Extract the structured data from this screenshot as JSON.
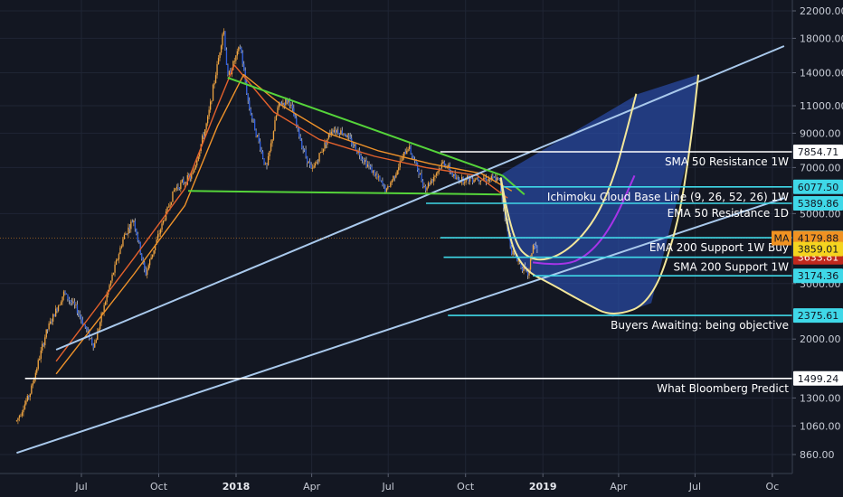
{
  "chart_data": {
    "type": "candlestick",
    "scale": "log",
    "ylim": [
      800,
      24000
    ],
    "grid": true,
    "y_ticks": [
      22000,
      18000,
      14000,
      11000,
      9000,
      7000,
      5000,
      3000,
      2000,
      1300,
      1060,
      860
    ],
    "y_tick_labels": [
      "22000.00",
      "18000.00",
      "14000.00",
      "11000.00",
      "9000.00",
      "7000.00",
      "5000.00",
      "3000.00",
      "2000.00",
      "1300.00",
      "1060.00",
      "860.00"
    ],
    "x_ticks": [
      {
        "label": "Jul",
        "date": "2017-07-01",
        "bold": false
      },
      {
        "label": "Oct",
        "date": "2017-10-01",
        "bold": false
      },
      {
        "label": "2018",
        "date": "2018-01-01",
        "bold": true
      },
      {
        "label": "Apr",
        "date": "2018-04-01",
        "bold": false
      },
      {
        "label": "Jul",
        "date": "2018-07-01",
        "bold": false
      },
      {
        "label": "Oct",
        "date": "2018-10-01",
        "bold": false
      },
      {
        "label": "2019",
        "date": "2019-01-01",
        "bold": true
      },
      {
        "label": "Apr",
        "date": "2019-04-01",
        "bold": false
      },
      {
        "label": "Jul",
        "date": "2019-07-01",
        "bold": false
      },
      {
        "label": "Oc",
        "date": "2019-10-01",
        "bold": false
      }
    ],
    "price_path": [
      [
        "2017-04-15",
        1100
      ],
      [
        "2017-05-01",
        1350
      ],
      [
        "2017-05-20",
        2100
      ],
      [
        "2017-06-10",
        2800
      ],
      [
        "2017-06-25",
        2500
      ],
      [
        "2017-07-16",
        1900
      ],
      [
        "2017-08-01",
        2800
      ],
      [
        "2017-08-20",
        4200
      ],
      [
        "2017-09-01",
        4800
      ],
      [
        "2017-09-15",
        3200
      ],
      [
        "2017-10-01",
        4300
      ],
      [
        "2017-10-20",
        6000
      ],
      [
        "2017-11-10",
        6600
      ],
      [
        "2017-11-28",
        9900
      ],
      [
        "2017-12-10",
        15000
      ],
      [
        "2017-12-17",
        19500
      ],
      [
        "2017-12-22",
        13500
      ],
      [
        "2018-01-06",
        17000
      ],
      [
        "2018-01-16",
        11000
      ],
      [
        "2018-02-06",
        6900
      ],
      [
        "2018-02-20",
        11000
      ],
      [
        "2018-03-05",
        11500
      ],
      [
        "2018-03-20",
        8300
      ],
      [
        "2018-04-01",
        6800
      ],
      [
        "2018-04-25",
        9300
      ],
      [
        "2018-05-10",
        9000
      ],
      [
        "2018-06-01",
        7500
      ],
      [
        "2018-06-29",
        5900
      ],
      [
        "2018-07-25",
        8200
      ],
      [
        "2018-08-14",
        6000
      ],
      [
        "2018-09-05",
        7300
      ],
      [
        "2018-09-20",
        6400
      ],
      [
        "2018-10-15",
        6500
      ],
      [
        "2018-11-10",
        6400
      ],
      [
        "2018-11-20",
        4400
      ],
      [
        "2018-11-25",
        3800
      ],
      [
        "2018-12-07",
        3400
      ],
      [
        "2018-12-15",
        3200
      ],
      [
        "2018-12-20",
        4000
      ],
      [
        "2018-12-26",
        3800
      ]
    ],
    "ma_lines": [
      {
        "color": "#e3612c",
        "points": [
          [
            "2017-06-01",
            1700
          ],
          [
            "2017-09-01",
            3600
          ],
          [
            "2017-11-01",
            6000
          ],
          [
            "2017-12-10",
            11000
          ],
          [
            "2017-12-30",
            14800
          ],
          [
            "2018-02-15",
            10500
          ],
          [
            "2018-04-10",
            8600
          ],
          [
            "2018-06-15",
            7600
          ],
          [
            "2018-08-15",
            7000
          ],
          [
            "2018-10-15",
            6600
          ],
          [
            "2018-11-20",
            5600
          ]
        ]
      },
      {
        "color": "#f0932a",
        "points": [
          [
            "2017-06-01",
            1550
          ],
          [
            "2017-09-01",
            3200
          ],
          [
            "2017-11-01",
            5300
          ],
          [
            "2017-12-10",
            9500
          ],
          [
            "2018-01-10",
            13800
          ],
          [
            "2018-02-25",
            11000
          ],
          [
            "2018-04-20",
            9000
          ],
          [
            "2018-06-20",
            7900
          ],
          [
            "2018-08-20",
            7200
          ],
          [
            "2018-10-20",
            6700
          ],
          [
            "2018-11-25",
            5900
          ]
        ]
      }
    ],
    "trendlines": [
      {
        "name": "upper-channel-line",
        "color": "#a9c9ec",
        "from": [
          "2017-06-01",
          1850
        ],
        "to": [
          "2019-10-15",
          17000
        ]
      },
      {
        "name": "lower-channel-line",
        "color": "#a9c9ec",
        "from": [
          "2017-04-15",
          870
        ],
        "to": [
          "2019-10-15",
          5600
        ]
      },
      {
        "name": "descending-triangle-top",
        "color": "#55d43a",
        "from": [
          "2017-12-22",
          13500
        ],
        "to": [
          "2018-11-14",
          6600
        ]
      },
      {
        "name": "triangle-support",
        "color": "#55d43a",
        "from": [
          "2017-11-05",
          5900
        ],
        "to": [
          "2018-11-14",
          5750
        ]
      },
      {
        "name": "triangle-apex",
        "color": "#55d43a",
        "from": [
          "2018-11-14",
          6600
        ],
        "to": [
          "2018-12-10",
          5750
        ]
      }
    ],
    "horizontal_levels": [
      {
        "value": 7854.71,
        "label": "7854.71",
        "annotation": "SMA 50 Resistance 1W",
        "color": "#ffffff",
        "start": "2018-09-01",
        "tag_bg": "#ffffff",
        "tag_fg": "#131722"
      },
      {
        "value": 6077.5,
        "label": "6077.50",
        "annotation": "Ichimoku Cloud Base Line (9, 26, 52, 26) 1W",
        "color": "#3fd8e8",
        "start": "2018-11-15",
        "tag_bg": "#3fd8e8",
        "tag_fg": "#131722"
      },
      {
        "value": 5389.86,
        "label": "5389.86",
        "annotation": "EMA 50 Resistance 1D",
        "color": "#3fd8e8",
        "start": "2018-08-15",
        "tag_bg": "#3fd8e8",
        "tag_fg": "#131722"
      },
      {
        "value": 4193.17,
        "label": "4193.17",
        "annotation": "EMA 200 Support 1W Buy",
        "color": "#3fd8e8",
        "start": "2018-09-01",
        "tag_bg": "#3fd8e8",
        "tag_fg": "#131722"
      },
      {
        "value": 3633.81,
        "label": "3633.81",
        "annotation": "SMA 200 Support 1W",
        "color": "#3fd8e8",
        "start": "2018-09-05",
        "tag_bg": "#c0281d",
        "tag_fg": "#ffffff"
      },
      {
        "value": 3174.36,
        "label": "3174.36",
        "annotation": "",
        "color": "#3fd8e8",
        "start": "2018-12-20",
        "tag_bg": "#3fd8e8",
        "tag_fg": "#131722"
      },
      {
        "value": 2375.61,
        "label": "2375.61",
        "annotation": "Buyers Awaiting: being objective",
        "color": "#3fd8e8",
        "start": "2018-09-10",
        "tag_bg": "#3fd8e8",
        "tag_fg": "#131722"
      },
      {
        "value": 1499.24,
        "label": "1499.24",
        "annotation": "What Bloomberg Predict",
        "color": "#ffffff",
        "start": "2017-04-25",
        "tag_bg": "#ffffff",
        "tag_fg": "#131722"
      }
    ],
    "price_tags": [
      {
        "value": 4179.88,
        "label": "4179.88",
        "bg": "#f09222",
        "fg": "#131722",
        "badge": "MA"
      },
      {
        "value": 3859.01,
        "label": "3859.01",
        "bg": "#f5d41f",
        "fg": "#131722",
        "badge": ""
      }
    ],
    "current_price_line": 4179.88,
    "curves": [
      {
        "name": "cup-curve-large",
        "color": "#f3e79b",
        "points": [
          [
            "2018-11-12",
            6500
          ],
          [
            "2018-11-20",
            4200
          ],
          [
            "2018-12-10",
            3300
          ],
          [
            "2019-01-10",
            3000
          ],
          [
            "2019-02-20",
            2600
          ],
          [
            "2019-03-25",
            2350
          ],
          [
            "2019-05-10",
            2600
          ],
          [
            "2019-06-10",
            4500
          ],
          [
            "2019-06-25",
            8000
          ],
          [
            "2019-07-05",
            13800
          ]
        ]
      },
      {
        "name": "cup-curve-small",
        "color": "#f3e79b",
        "points": [
          [
            "2018-11-12",
            6500
          ],
          [
            "2018-11-25",
            4100
          ],
          [
            "2018-12-20",
            3500
          ],
          [
            "2019-01-25",
            3700
          ],
          [
            "2019-03-01",
            4600
          ],
          [
            "2019-03-25",
            6300
          ],
          [
            "2019-04-10",
            9000
          ],
          [
            "2019-04-22",
            12000
          ]
        ]
      },
      {
        "name": "purple-curve",
        "color": "#a634e8",
        "points": [
          [
            "2018-12-20",
            3500
          ],
          [
            "2019-01-25",
            3400
          ],
          [
            "2019-02-25",
            3700
          ],
          [
            "2019-03-25",
            4600
          ],
          [
            "2019-04-20",
            6600
          ]
        ]
      }
    ],
    "projection_area": {
      "color": "#2c52b8",
      "points": [
        [
          "2018-11-14",
          6700
        ],
        [
          "2019-04-25",
          12000
        ],
        [
          "2019-07-05",
          13800
        ],
        [
          "2019-06-25",
          8000
        ],
        [
          "2019-05-10",
          2600
        ],
        [
          "2019-03-25",
          2350
        ],
        [
          "2019-01-10",
          3000
        ],
        [
          "2018-12-10",
          3300
        ],
        [
          "2018-11-20",
          4200
        ],
        [
          "2018-11-12",
          6500
        ]
      ]
    }
  }
}
